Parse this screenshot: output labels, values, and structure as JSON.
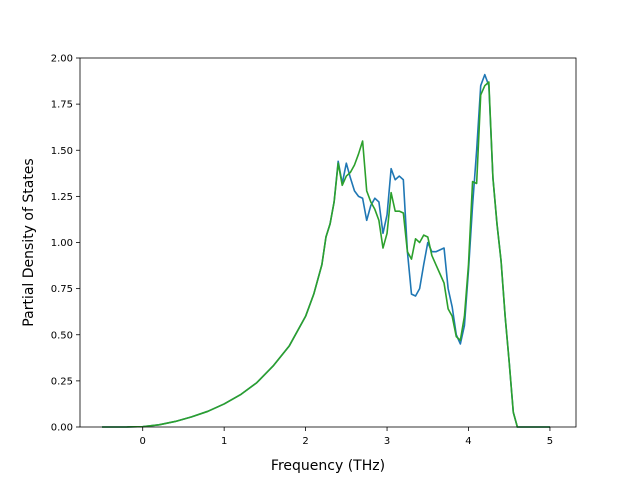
{
  "chart_data": {
    "type": "line",
    "title": "",
    "xlabel": "Frequency (THz)",
    "ylabel": "Partial Density of States",
    "xlim": [
      -0.77,
      5.32
    ],
    "ylim": [
      0,
      2.0
    ],
    "xticks": [
      0,
      1,
      2,
      3,
      4,
      5
    ],
    "xtick_labels": [
      "0",
      "1",
      "2",
      "3",
      "4",
      "5"
    ],
    "yticks": [
      0,
      0.25,
      0.5,
      0.75,
      1.0,
      1.25,
      1.5,
      1.75,
      2.0
    ],
    "ytick_labels": [
      "0.00",
      "0.25",
      "0.50",
      "0.75",
      "1.00",
      "1.25",
      "1.50",
      "1.75",
      "2.00"
    ],
    "grid": false,
    "legend": "none",
    "series": [
      {
        "color": "#1f77b4",
        "x": [
          -0.5,
          -0.2,
          0,
          0.2,
          0.4,
          0.6,
          0.8,
          1.0,
          1.2,
          1.4,
          1.6,
          1.8,
          2.0,
          2.1,
          2.2,
          2.25,
          2.3,
          2.35,
          2.4,
          2.45,
          2.5,
          2.55,
          2.6,
          2.65,
          2.7,
          2.75,
          2.8,
          2.85,
          2.9,
          2.95,
          3.0,
          3.05,
          3.1,
          3.15,
          3.2,
          3.25,
          3.3,
          3.35,
          3.4,
          3.45,
          3.5,
          3.55,
          3.6,
          3.65,
          3.7,
          3.75,
          3.8,
          3.85,
          3.9,
          3.95,
          4.0,
          4.05,
          4.1,
          4.15,
          4.2,
          4.25,
          4.3,
          4.35,
          4.4,
          4.45,
          4.5,
          4.55,
          4.6,
          4.65,
          5.0
        ],
        "y": [
          0.0,
          0.0,
          0.002,
          0.012,
          0.03,
          0.055,
          0.085,
          0.125,
          0.175,
          0.24,
          0.33,
          0.44,
          0.6,
          0.72,
          0.88,
          1.03,
          1.1,
          1.22,
          1.44,
          1.32,
          1.43,
          1.35,
          1.28,
          1.25,
          1.24,
          1.12,
          1.2,
          1.24,
          1.22,
          1.05,
          1.15,
          1.4,
          1.34,
          1.36,
          1.34,
          0.95,
          0.72,
          0.71,
          0.75,
          0.88,
          1.0,
          0.95,
          0.95,
          0.96,
          0.97,
          0.75,
          0.65,
          0.5,
          0.45,
          0.55,
          0.85,
          1.2,
          1.5,
          1.85,
          1.91,
          1.85,
          1.35,
          1.1,
          0.9,
          0.6,
          0.35,
          0.08,
          0.0,
          0.0,
          0.0
        ]
      },
      {
        "color": "#2ca02c",
        "x": [
          -0.5,
          -0.2,
          0,
          0.2,
          0.4,
          0.6,
          0.8,
          1.0,
          1.2,
          1.4,
          1.6,
          1.8,
          2.0,
          2.1,
          2.2,
          2.25,
          2.3,
          2.35,
          2.4,
          2.45,
          2.5,
          2.55,
          2.6,
          2.65,
          2.7,
          2.75,
          2.8,
          2.85,
          2.9,
          2.95,
          3.0,
          3.05,
          3.1,
          3.15,
          3.2,
          3.25,
          3.3,
          3.35,
          3.4,
          3.45,
          3.5,
          3.55,
          3.6,
          3.65,
          3.7,
          3.75,
          3.8,
          3.85,
          3.9,
          3.95,
          4.0,
          4.05,
          4.1,
          4.15,
          4.2,
          4.25,
          4.3,
          4.35,
          4.4,
          4.45,
          4.5,
          4.55,
          4.6,
          4.65,
          5.0
        ],
        "y": [
          0.0,
          0.0,
          0.002,
          0.012,
          0.03,
          0.055,
          0.085,
          0.125,
          0.175,
          0.24,
          0.33,
          0.44,
          0.6,
          0.72,
          0.88,
          1.03,
          1.1,
          1.22,
          1.43,
          1.31,
          1.36,
          1.38,
          1.42,
          1.48,
          1.55,
          1.28,
          1.22,
          1.18,
          1.12,
          0.97,
          1.05,
          1.27,
          1.17,
          1.17,
          1.16,
          0.95,
          0.91,
          1.02,
          1.0,
          1.04,
          1.03,
          0.93,
          0.88,
          0.83,
          0.78,
          0.64,
          0.6,
          0.49,
          0.47,
          0.6,
          0.88,
          1.33,
          1.32,
          1.8,
          1.85,
          1.87,
          1.35,
          1.1,
          0.9,
          0.6,
          0.35,
          0.08,
          0.0,
          0.0,
          0.0
        ]
      }
    ]
  }
}
